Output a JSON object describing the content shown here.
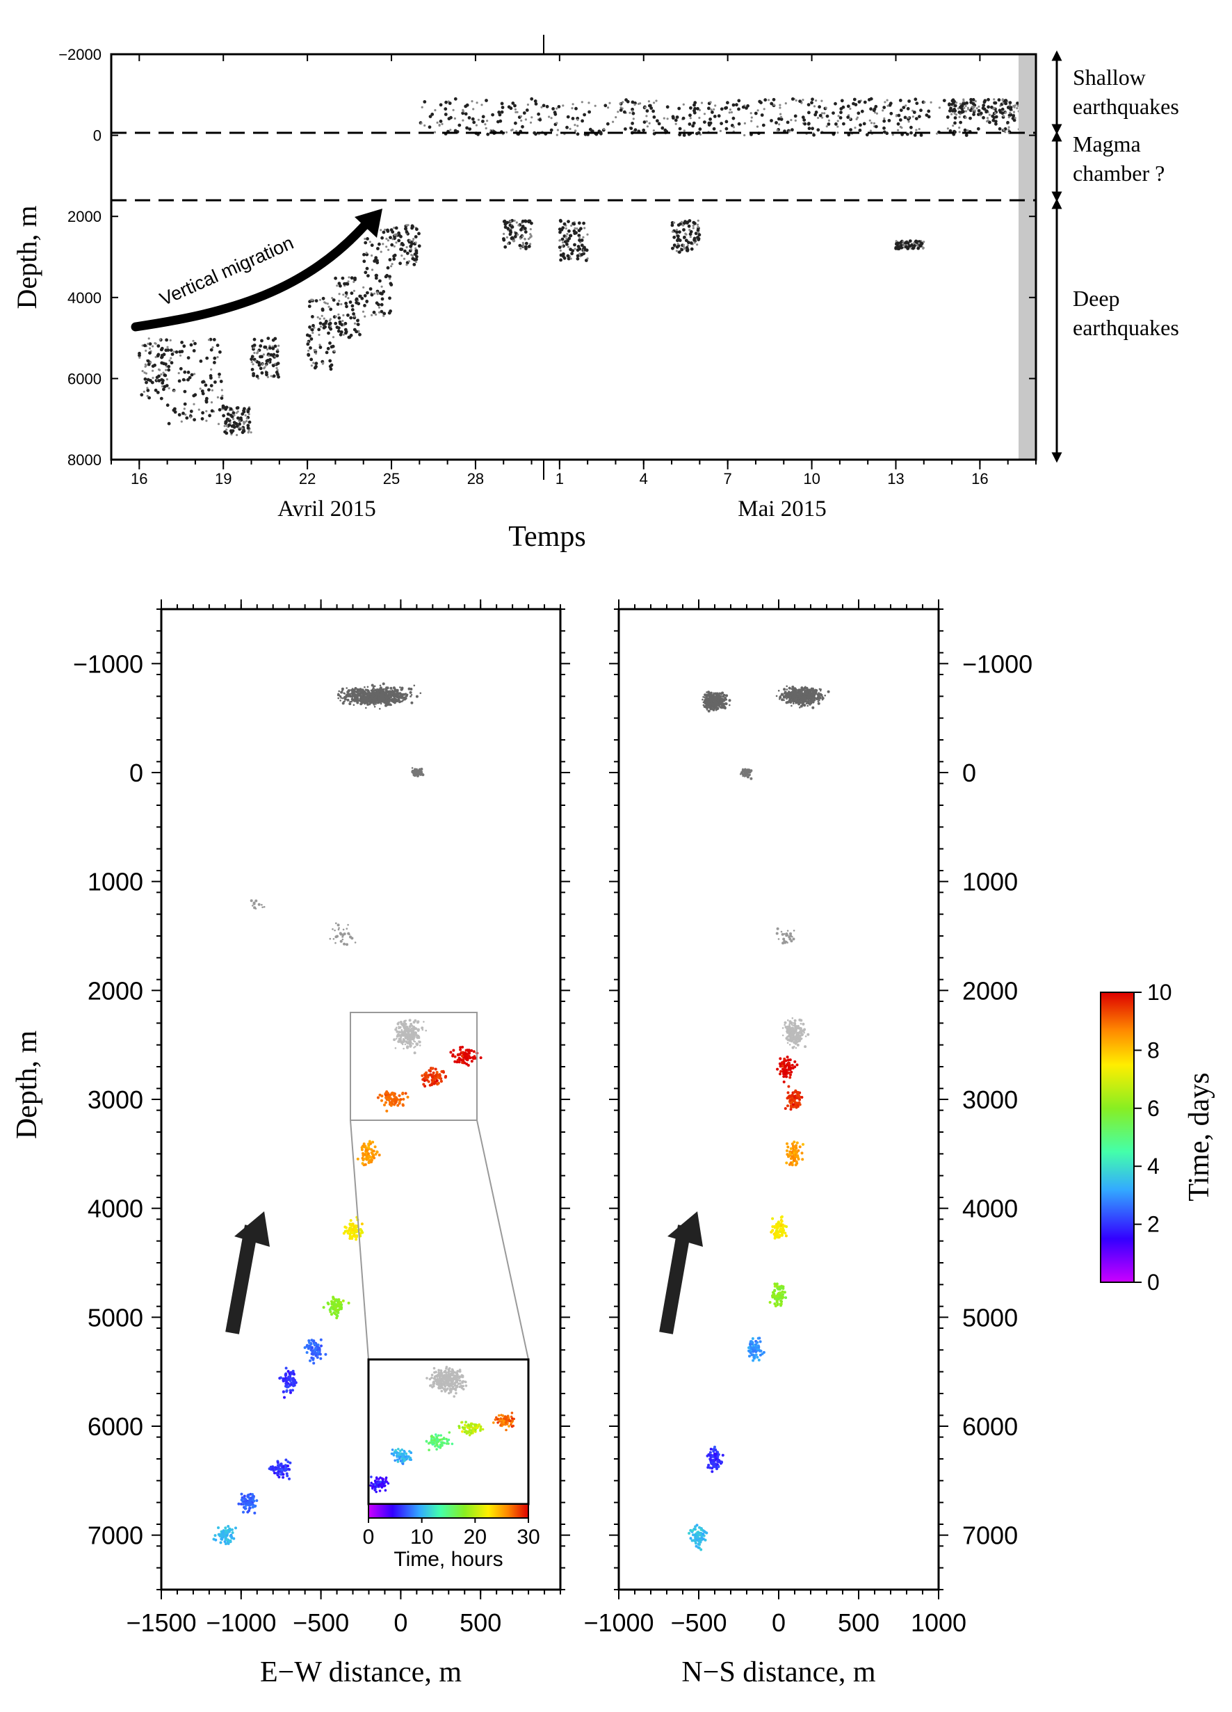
{
  "timeline": {
    "ylabel": "Depth, m",
    "xlabel": "Temps",
    "month_labels": [
      "Avril 2015",
      "Mai 2015"
    ],
    "ytick_labels": [
      "−2000",
      "0",
      "2000",
      "4000",
      "6000",
      "8000"
    ],
    "xtick_labels": [
      "16",
      "19",
      "22",
      "25",
      "28",
      "1",
      "4",
      "7",
      "10",
      "13",
      "16"
    ],
    "migration_label": "Vertical migration",
    "zones": [
      {
        "lines": [
          "Shallow",
          "earthquakes"
        ]
      },
      {
        "lines": [
          "Magma",
          "chamber ?"
        ]
      },
      {
        "lines": [
          "Deep",
          "earthquakes"
        ]
      }
    ]
  },
  "ew_panel": {
    "xlabel": "E−W distance, m",
    "ylabel": "Depth, m",
    "xtick_labels": [
      "−1500",
      "−1000",
      "−500",
      "0",
      "500"
    ],
    "ytick_labels": [
      "−1000",
      "0",
      "1000",
      "2000",
      "3000",
      "4000",
      "5000",
      "6000",
      "7000"
    ]
  },
  "ns_panel": {
    "xlabel": "N−S distance, m",
    "xtick_labels": [
      "−1000",
      "−500",
      "0",
      "500",
      "1000"
    ],
    "ytick_labels": [
      "−1000",
      "0",
      "1000",
      "2000",
      "3000",
      "4000",
      "5000",
      "6000",
      "7000"
    ]
  },
  "inset": {
    "colorbar_label": "Time, hours",
    "tick_labels": [
      "0",
      "10",
      "20",
      "30"
    ]
  },
  "colorbar": {
    "label": "Time, days",
    "tick_labels": [
      "0",
      "2",
      "4",
      "6",
      "8",
      "10"
    ]
  },
  "chart_data": [
    {
      "type": "scatter",
      "xlabel": "Temps",
      "ylabel": "Depth, m",
      "x_unit": "date",
      "xlim": [
        "2015-04-15",
        "2015-05-18"
      ],
      "ylim": [
        8000,
        -2000
      ],
      "y_inverted": true,
      "reference_lines_depth_m": [
        -100,
        1600
      ],
      "clusters": [
        {
          "start": "2015-04-16",
          "end": "2015-04-17",
          "depth_min": 5000,
          "depth_max": 6500
        },
        {
          "start": "2015-04-17",
          "end": "2015-04-19",
          "depth_min": 5000,
          "depth_max": 7200
        },
        {
          "start": "2015-04-19",
          "end": "2015-04-20",
          "depth_min": 6700,
          "depth_max": 7400
        },
        {
          "start": "2015-04-20",
          "end": "2015-04-21",
          "depth_min": 5000,
          "depth_max": 6000
        },
        {
          "start": "2015-04-22",
          "end": "2015-04-23",
          "depth_min": 4000,
          "depth_max": 5800
        },
        {
          "start": "2015-04-23",
          "end": "2015-04-24",
          "depth_min": 3500,
          "depth_max": 5000
        },
        {
          "start": "2015-04-24",
          "end": "2015-04-25",
          "depth_min": 2300,
          "depth_max": 4500
        },
        {
          "start": "2015-04-25",
          "end": "2015-04-26",
          "depth_min": 2200,
          "depth_max": 3200
        },
        {
          "start": "2015-04-26",
          "end": "2015-05-18",
          "depth_min": -900,
          "depth_max": 0
        },
        {
          "start": "2015-04-29",
          "end": "2015-04-30",
          "depth_min": 2100,
          "depth_max": 2800
        },
        {
          "start": "2015-05-01",
          "end": "2015-05-02",
          "depth_min": 2100,
          "depth_max": 3100
        },
        {
          "start": "2015-05-05",
          "end": "2015-05-06",
          "depth_min": 2100,
          "depth_max": 2900
        },
        {
          "start": "2015-05-13",
          "end": "2015-05-14",
          "depth_min": 2600,
          "depth_max": 2800
        },
        {
          "start": "2015-05-15",
          "end": "2015-05-18",
          "depth_min": -900,
          "depth_max": -400
        }
      ]
    },
    {
      "type": "scatter",
      "xlabel": "E−W distance, m",
      "ylabel": "Depth, m",
      "xlim": [
        -1500,
        1000
      ],
      "ylim": [
        7500,
        -1500
      ],
      "color_variable": "Time, days",
      "color_range": [
        0,
        10
      ],
      "clusters": [
        {
          "x": -1100,
          "depth": 7000,
          "time_days": 3.5
        },
        {
          "x": -950,
          "depth": 6700,
          "time_days": 2.5
        },
        {
          "x": -750,
          "depth": 6400,
          "time_days": 2.0
        },
        {
          "x": -700,
          "depth": 5600,
          "time_days": 2.0
        },
        {
          "x": -550,
          "depth": 5300,
          "time_days": 2.5
        },
        {
          "x": -400,
          "depth": 4900,
          "time_days": 6.0
        },
        {
          "x": -300,
          "depth": 4200,
          "time_days": 7.5
        },
        {
          "x": -200,
          "depth": 3500,
          "time_days": 8.5
        },
        {
          "x": -50,
          "depth": 3000,
          "time_days": 9.0
        },
        {
          "x": 200,
          "depth": 2800,
          "time_days": 9.5
        },
        {
          "x": 400,
          "depth": 2600,
          "time_days": 10.0
        },
        {
          "x": 200,
          "depth": -700,
          "time_days": null
        },
        {
          "x": 0,
          "depth": 0,
          "time_days": null
        }
      ]
    },
    {
      "type": "scatter",
      "xlabel": "N−S distance, m",
      "ylabel": "Depth, m",
      "xlim": [
        -1000,
        1000
      ],
      "ylim": [
        7500,
        -1500
      ],
      "color_variable": "Time, days",
      "color_range": [
        0,
        10
      ],
      "clusters": [
        {
          "x": -500,
          "depth": 7000,
          "time_days": 3.5
        },
        {
          "x": -400,
          "depth": 6300,
          "time_days": 2.0
        },
        {
          "x": -150,
          "depth": 5300,
          "time_days": 3.0
        },
        {
          "x": 0,
          "depth": 4800,
          "time_days": 6.0
        },
        {
          "x": 0,
          "depth": 4200,
          "time_days": 7.5
        },
        {
          "x": 100,
          "depth": 3500,
          "time_days": 8.5
        },
        {
          "x": 100,
          "depth": 3000,
          "time_days": 9.5
        },
        {
          "x": 50,
          "depth": 2700,
          "time_days": 10.0
        },
        {
          "x": -400,
          "depth": -650,
          "time_days": null
        },
        {
          "x": 150,
          "depth": -700,
          "time_days": null
        }
      ]
    },
    {
      "type": "scatter",
      "color_variable": "Time, hours",
      "color_range": [
        0,
        30
      ],
      "clusters": [
        {
          "x": -100,
          "depth": 3100,
          "time_hours": 5
        },
        {
          "x": 0,
          "depth": 2900,
          "time_hours": 10
        },
        {
          "x": 150,
          "depth": 2800,
          "time_hours": 15
        },
        {
          "x": 300,
          "depth": 2700,
          "time_hours": 20
        },
        {
          "x": 450,
          "depth": 2650,
          "time_hours": 27
        }
      ]
    }
  ]
}
